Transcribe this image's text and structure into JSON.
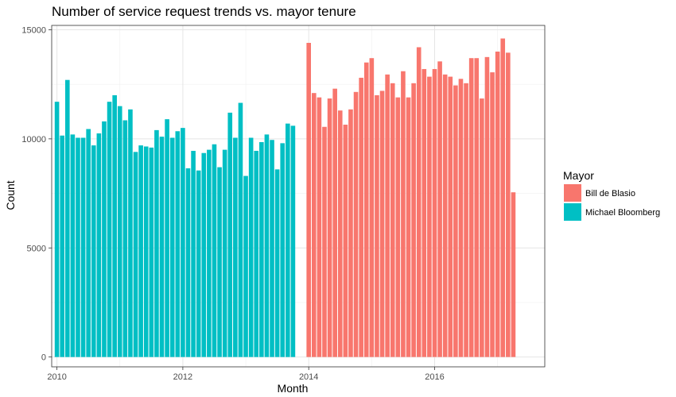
{
  "chart_data": {
    "type": "bar",
    "title": "Number of service request trends vs. mayor tenure",
    "xlabel": "Month",
    "ylabel": "Count",
    "xlim": [
      "2009-12",
      "2017-10"
    ],
    "ylim": [
      -450,
      15200
    ],
    "x_ticks": [
      "2010",
      "2012",
      "2014",
      "2016"
    ],
    "y_ticks": [
      0,
      5000,
      10000,
      15000
    ],
    "y_tick_labels": [
      "0",
      "5000",
      "10000",
      "15000"
    ],
    "grid": true,
    "legend": {
      "title": "Mayor",
      "placement": "right",
      "entries": [
        {
          "name": "Bill de Blasio",
          "color": "#F8766D"
        },
        {
          "name": "Michael Bloomberg",
          "color": "#00BFC4"
        }
      ]
    },
    "series": [
      {
        "name": "Michael Bloomberg",
        "color": "#00BFC4",
        "start": "2010-01",
        "values": [
          11700,
          10150,
          12700,
          10200,
          10050,
          10050,
          10450,
          9700,
          10250,
          10800,
          11700,
          12000,
          11500,
          10850,
          11350,
          9400,
          9700,
          9650,
          9600,
          10400,
          10100,
          10900,
          10050,
          10350,
          10500,
          8650,
          9450,
          8550,
          9350,
          9500,
          9750,
          8700,
          9500,
          11200,
          10050,
          11650,
          8300,
          10050,
          9450,
          9850,
          10200,
          9950,
          8600,
          9800,
          10700,
          10600
        ]
      },
      {
        "name": "Bill de Blasio",
        "color": "#F8766D",
        "start": "2014-01",
        "values": [
          14400,
          12100,
          11900,
          10550,
          11850,
          12300,
          11300,
          10650,
          11350,
          12150,
          12800,
          13500,
          13700,
          12000,
          12200,
          12950,
          12550,
          11900,
          13100,
          11900,
          12550,
          14200,
          13200,
          12850,
          13200,
          13550,
          12950,
          12850,
          12450,
          12750,
          12550,
          13700,
          13700,
          11850,
          13750,
          13050,
          14000,
          14600,
          13950,
          7550
        ]
      }
    ]
  }
}
